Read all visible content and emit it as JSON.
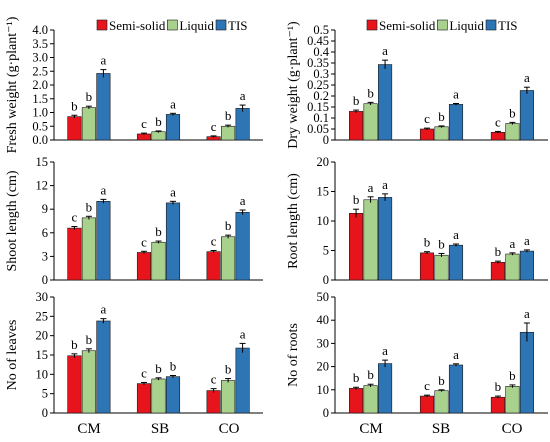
{
  "figure": {
    "category_axis_labels": [
      "CM",
      "SB",
      "CO"
    ]
  },
  "chart_data": [
    {
      "type": "bar",
      "ylabel": "Fresh weight  (g·plant⁻¹)",
      "ylim": [
        0,
        4.0
      ],
      "yticks": [
        "0.0",
        "0.5",
        "1.0",
        "1.5",
        "2.0",
        "2.5",
        "3.0",
        "3.5",
        "4.0"
      ],
      "categories": [
        "CM",
        "SB",
        "CO"
      ],
      "legend": "top",
      "series": [
        {
          "name": "Semi-solid",
          "color": "#e8141c",
          "values": [
            0.85,
            0.22,
            0.12
          ],
          "errors": [
            0.05,
            0.03,
            0.03
          ],
          "letters": [
            "b",
            "c",
            "c"
          ]
        },
        {
          "name": "Liquid",
          "color": "#a9d18e",
          "values": [
            1.18,
            0.3,
            0.5
          ],
          "errors": [
            0.05,
            0.03,
            0.04
          ],
          "letters": [
            "b",
            "b",
            "b"
          ]
        },
        {
          "name": "TIS",
          "color": "#2e75b6",
          "values": [
            2.42,
            0.93,
            1.15
          ],
          "errors": [
            0.14,
            0.04,
            0.12
          ],
          "letters": [
            "a",
            "a",
            "a"
          ]
        }
      ]
    },
    {
      "type": "bar",
      "ylabel": "Dry weight  (g·plant⁻¹)",
      "ylim": [
        0,
        0.5
      ],
      "yticks": [
        "0",
        "0.05",
        "0.1",
        "0.15",
        "0.2",
        "0.25",
        "0.3",
        "0.35",
        "0.4",
        "0.45",
        "0.5"
      ],
      "categories": [
        "CM",
        "SB",
        "CO"
      ],
      "legend": "top",
      "series": [
        {
          "name": "Semi-solid",
          "color": "#e8141c",
          "values": [
            0.13,
            0.05,
            0.035
          ],
          "errors": [
            0.006,
            0.004,
            0.004
          ],
          "letters": [
            "b",
            "c",
            "c"
          ]
        },
        {
          "name": "Liquid",
          "color": "#a9d18e",
          "values": [
            0.165,
            0.06,
            0.075
          ],
          "errors": [
            0.006,
            0.004,
            0.005
          ],
          "letters": [
            "b",
            "b",
            "b"
          ]
        },
        {
          "name": "TIS",
          "color": "#2e75b6",
          "values": [
            0.343,
            0.162,
            0.225
          ],
          "errors": [
            0.02,
            0.004,
            0.015
          ],
          "letters": [
            "a",
            "a",
            "a"
          ]
        }
      ]
    },
    {
      "type": "bar",
      "ylabel": "Shoot length (cm)",
      "ylim": [
        0,
        15
      ],
      "yticks": [
        "0",
        "3",
        "6",
        "9",
        "12",
        "15"
      ],
      "categories": [
        "CM",
        "SB",
        "CO"
      ],
      "series": [
        {
          "name": "Semi-solid",
          "color": "#e8141c",
          "values": [
            6.6,
            3.5,
            3.6
          ],
          "errors": [
            0.2,
            0.15,
            0.15
          ],
          "letters": [
            "c",
            "c",
            "c"
          ]
        },
        {
          "name": "Liquid",
          "color": "#a9d18e",
          "values": [
            7.9,
            4.8,
            5.5
          ],
          "errors": [
            0.2,
            0.15,
            0.2
          ],
          "letters": [
            "b",
            "b",
            "b"
          ]
        },
        {
          "name": "TIS",
          "color": "#2e75b6",
          "values": [
            10.0,
            9.8,
            8.6
          ],
          "errors": [
            0.25,
            0.2,
            0.3
          ],
          "letters": [
            "a",
            "a",
            "a"
          ]
        }
      ]
    },
    {
      "type": "bar",
      "ylabel": "Root length (cm)",
      "ylim": [
        0,
        20
      ],
      "yticks": [
        "0",
        "5",
        "10",
        "15",
        "20"
      ],
      "categories": [
        "CM",
        "SB",
        "CO"
      ],
      "series": [
        {
          "name": "Semi-solid",
          "color": "#e8141c",
          "values": [
            11.3,
            4.6,
            3.0
          ],
          "errors": [
            0.7,
            0.2,
            0.2
          ],
          "letters": [
            "b",
            "b",
            "b"
          ]
        },
        {
          "name": "Liquid",
          "color": "#a9d18e",
          "values": [
            13.6,
            4.2,
            4.4
          ],
          "errors": [
            0.5,
            0.3,
            0.2
          ],
          "letters": [
            "a",
            "b",
            "a"
          ]
        },
        {
          "name": "TIS",
          "color": "#2e75b6",
          "values": [
            14.0,
            5.9,
            4.9
          ],
          "errors": [
            0.6,
            0.2,
            0.2
          ],
          "letters": [
            "a",
            "a",
            "a"
          ]
        }
      ]
    },
    {
      "type": "bar",
      "ylabel": "No of leaves",
      "ylim": [
        0,
        30
      ],
      "yticks": [
        "0",
        "5",
        "10",
        "15",
        "20",
        "25",
        "30"
      ],
      "categories": [
        "CM",
        "SB",
        "CO"
      ],
      "series": [
        {
          "name": "Semi-solid",
          "color": "#e8141c",
          "values": [
            14.8,
            7.6,
            5.8
          ],
          "errors": [
            0.5,
            0.3,
            0.5
          ],
          "letters": [
            "b",
            "c",
            "c"
          ]
        },
        {
          "name": "Liquid",
          "color": "#a9d18e",
          "values": [
            16.1,
            8.8,
            8.4
          ],
          "errors": [
            0.5,
            0.3,
            0.5
          ],
          "letters": [
            "b",
            "b",
            "b"
          ]
        },
        {
          "name": "TIS",
          "color": "#2e75b6",
          "values": [
            23.8,
            9.4,
            16.8
          ],
          "errors": [
            0.6,
            0.3,
            1.2
          ],
          "letters": [
            "a",
            "b",
            "a"
          ]
        }
      ]
    },
    {
      "type": "bar",
      "ylabel": "No of roots",
      "ylim": [
        0,
        50
      ],
      "yticks": [
        "0",
        "10",
        "20",
        "30",
        "40",
        "50"
      ],
      "categories": [
        "CM",
        "SB",
        "CO"
      ],
      "series": [
        {
          "name": "Semi-solid",
          "color": "#e8141c",
          "values": [
            10.6,
            7.3,
            6.8
          ],
          "errors": [
            0.5,
            0.4,
            0.5
          ],
          "letters": [
            "b",
            "c",
            "b"
          ]
        },
        {
          "name": "Liquid",
          "color": "#a9d18e",
          "values": [
            11.8,
            9.6,
            11.5
          ],
          "errors": [
            0.6,
            0.4,
            0.6
          ],
          "letters": [
            "b",
            "b",
            "b"
          ]
        },
        {
          "name": "TIS",
          "color": "#2e75b6",
          "values": [
            21.3,
            20.7,
            34.8
          ],
          "errors": [
            1.5,
            0.5,
            4.0
          ],
          "letters": [
            "a",
            "a",
            "a"
          ]
        }
      ]
    }
  ]
}
